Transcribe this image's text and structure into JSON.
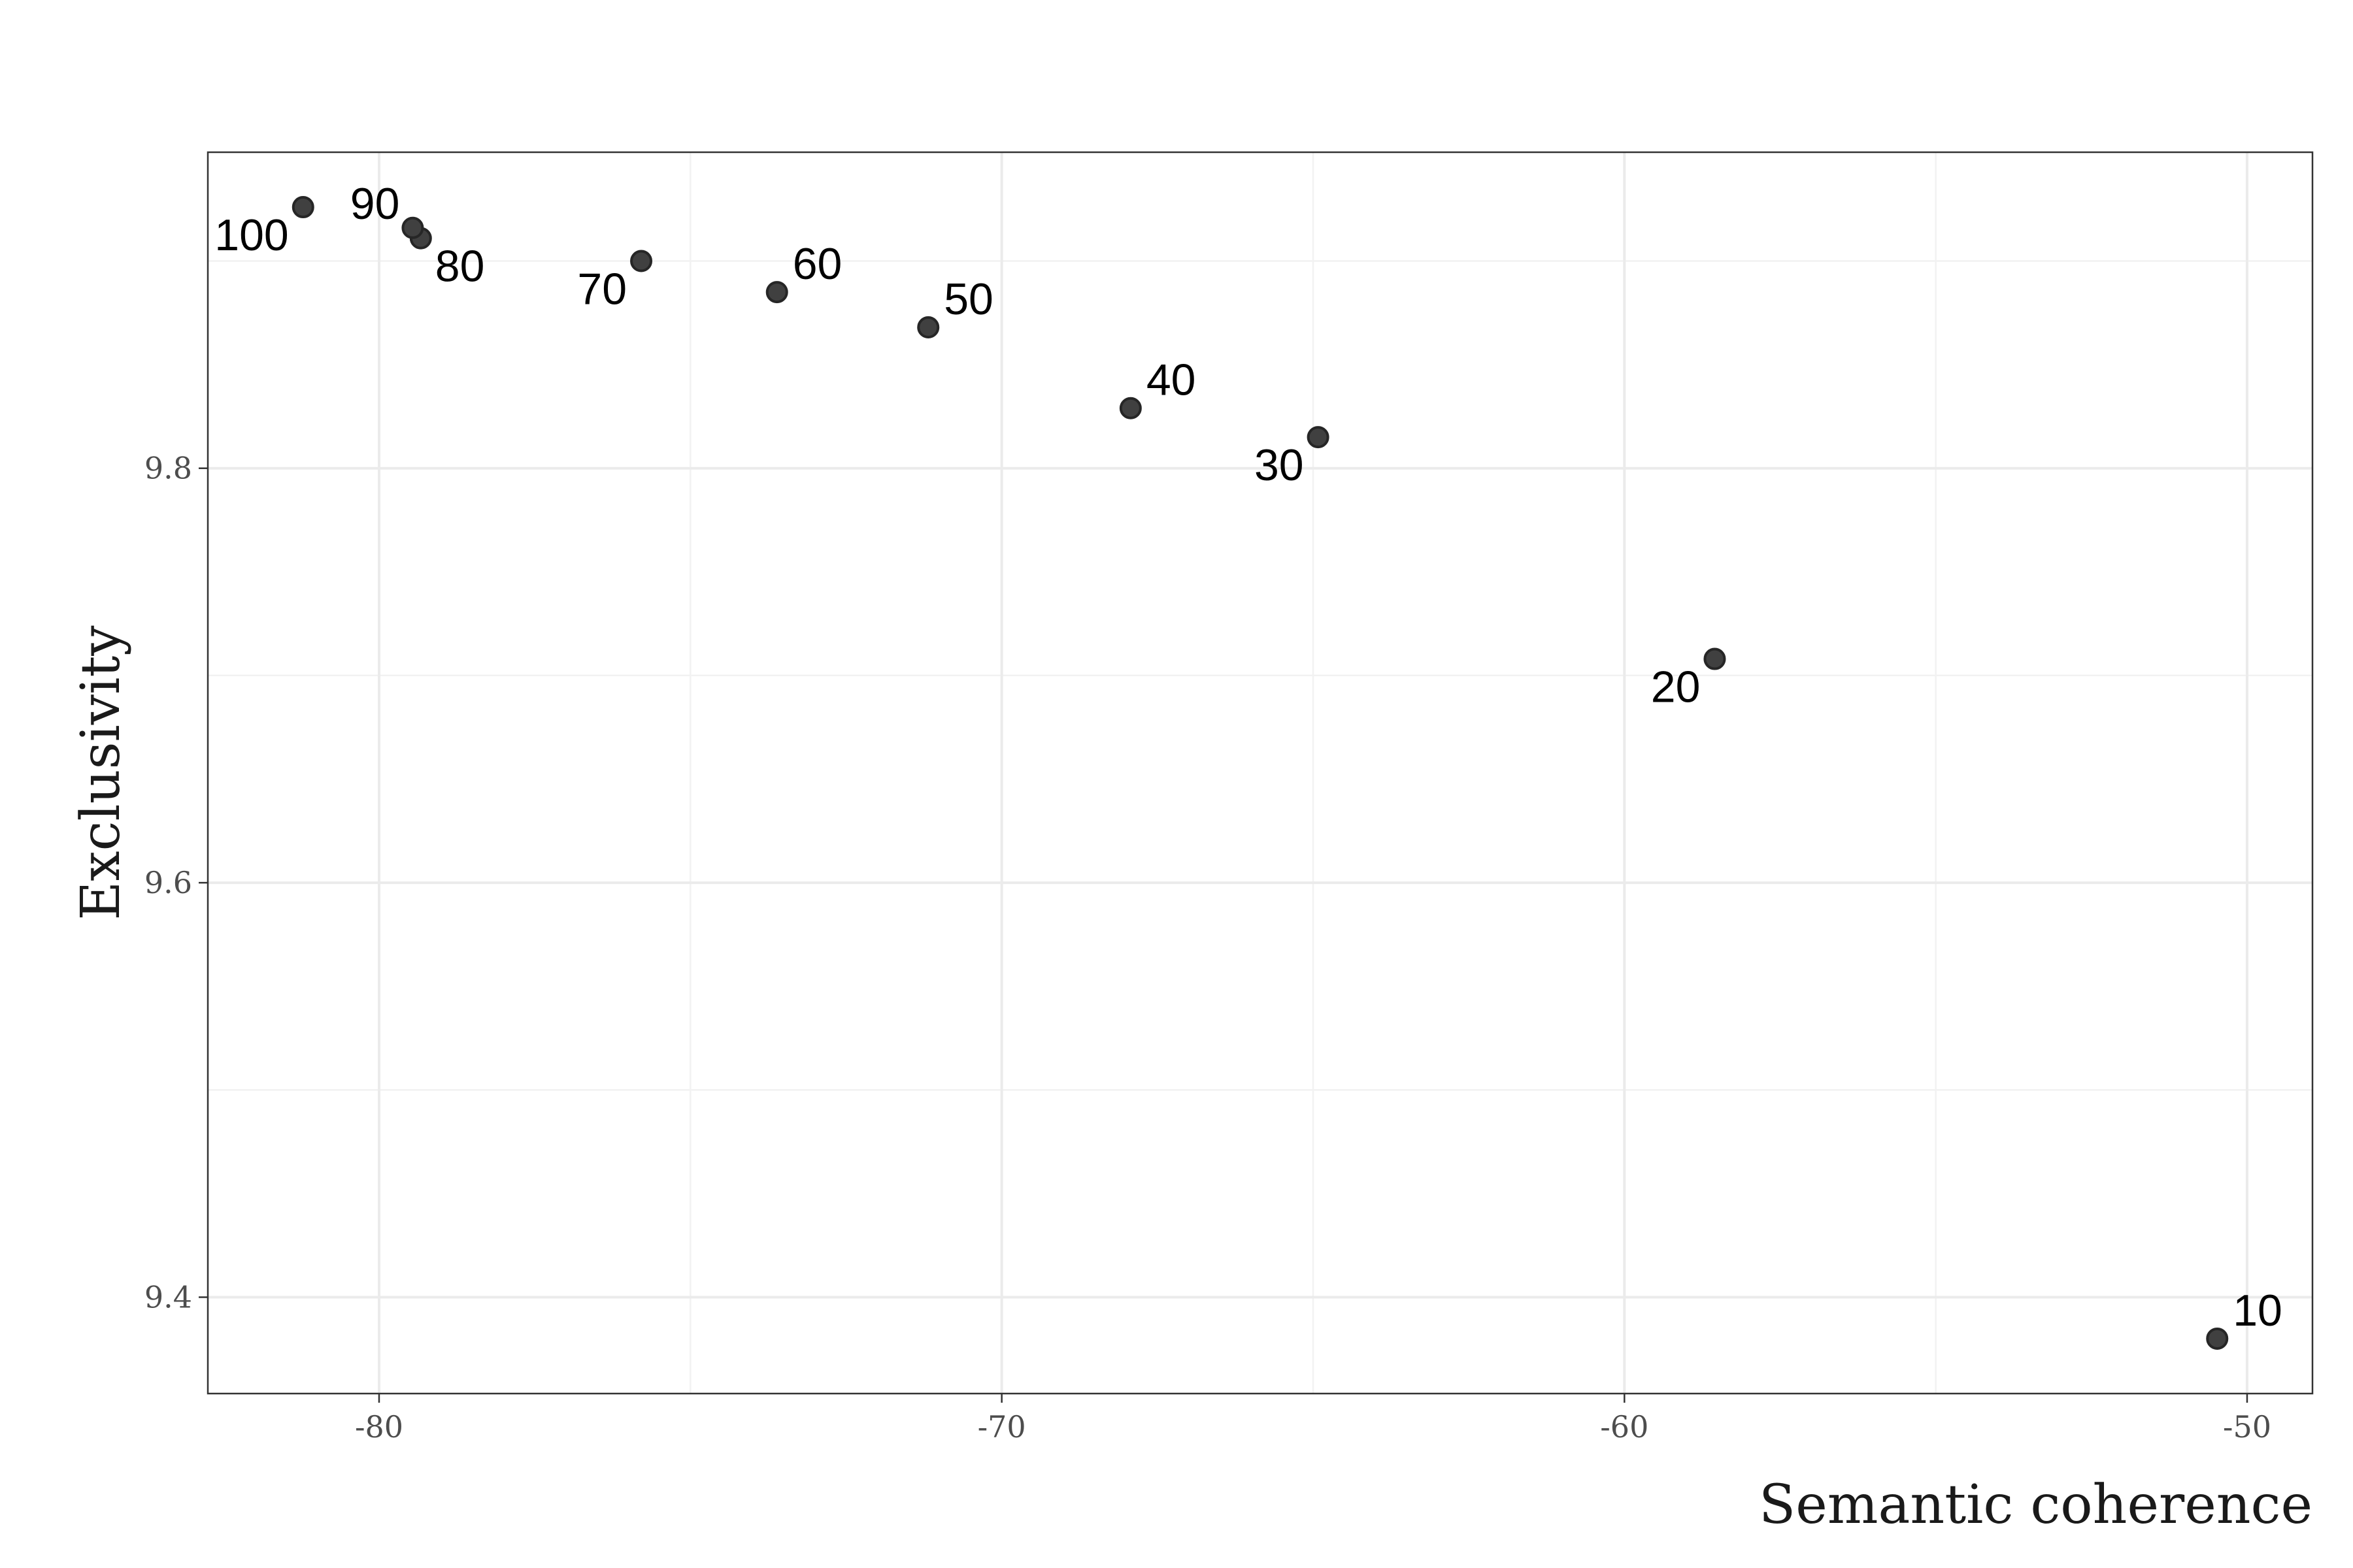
{
  "chart_data": {
    "type": "scatter",
    "xlabel": "Semantic coherence",
    "ylabel": "Exclusivity",
    "xlim": [
      -82.75,
      -48.95
    ],
    "ylim": [
      9.3535,
      9.9525
    ],
    "x_ticks": [
      -80,
      -70,
      -60,
      -50
    ],
    "x_tick_labels": [
      "-80",
      "-70",
      "-60",
      "-50"
    ],
    "y_ticks": [
      9.4,
      9.6,
      9.8
    ],
    "y_tick_labels": [
      "9.4",
      "9.6",
      "9.8"
    ],
    "grid": true,
    "points": [
      {
        "label": "10",
        "x": -50.48,
        "y": 9.38
      },
      {
        "label": "20",
        "x": -58.55,
        "y": 9.708
      },
      {
        "label": "30",
        "x": -64.92,
        "y": 9.815
      },
      {
        "label": "40",
        "x": -67.93,
        "y": 9.829
      },
      {
        "label": "50",
        "x": -71.18,
        "y": 9.868
      },
      {
        "label": "60",
        "x": -73.61,
        "y": 9.885
      },
      {
        "label": "70",
        "x": -75.79,
        "y": 9.9
      },
      {
        "label": "80",
        "x": -79.33,
        "y": 9.911
      },
      {
        "label": "90",
        "x": -79.46,
        "y": 9.916
      },
      {
        "label": "100",
        "x": -81.22,
        "y": 9.926
      }
    ],
    "label_positions": {
      "10": "upper-right",
      "20": "lower-left",
      "30": "lower-left",
      "40": "upper-right",
      "50": "upper-right",
      "60": "upper-right",
      "70": "lower-left",
      "80": "lower-right",
      "90": "upper-left",
      "100": "lower-left"
    },
    "colors": {
      "point_fill": "#404040",
      "point_stroke": "#262626",
      "grid": "#ebebeb",
      "border": "#333333"
    }
  }
}
